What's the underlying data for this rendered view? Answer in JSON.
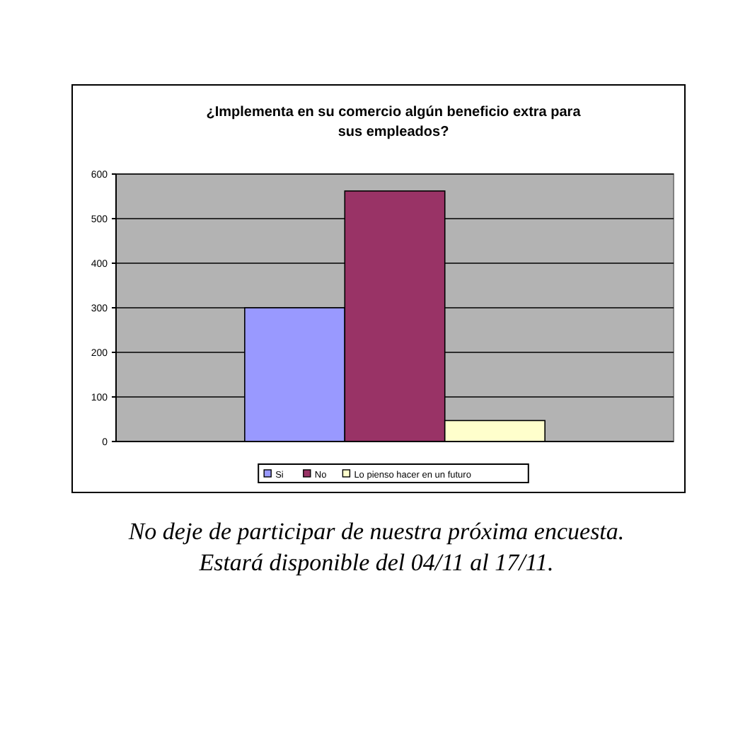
{
  "chart_data": {
    "type": "bar",
    "title": "¿Implementa en su comercio algún beneficio extra para sus empleados?",
    "categories": [
      null
    ],
    "series": [
      {
        "name": "Si",
        "color": "#9999ff",
        "values": [
          300
        ]
      },
      {
        "name": "No",
        "color": "#993366",
        "values": [
          562
        ]
      },
      {
        "name": "Lo pienso hacer en un futuro",
        "color": "#ffffcc",
        "values": [
          47
        ]
      }
    ],
    "ylim": [
      0,
      600
    ],
    "yticks": [
      0,
      100,
      200,
      300,
      400,
      500,
      600
    ],
    "grid": "y",
    "legend": "bottom",
    "annotations": [
      "No deje de participar de nuestra próxima encuesta.",
      "Estará disponible del 04/11 al 17/11."
    ]
  }
}
